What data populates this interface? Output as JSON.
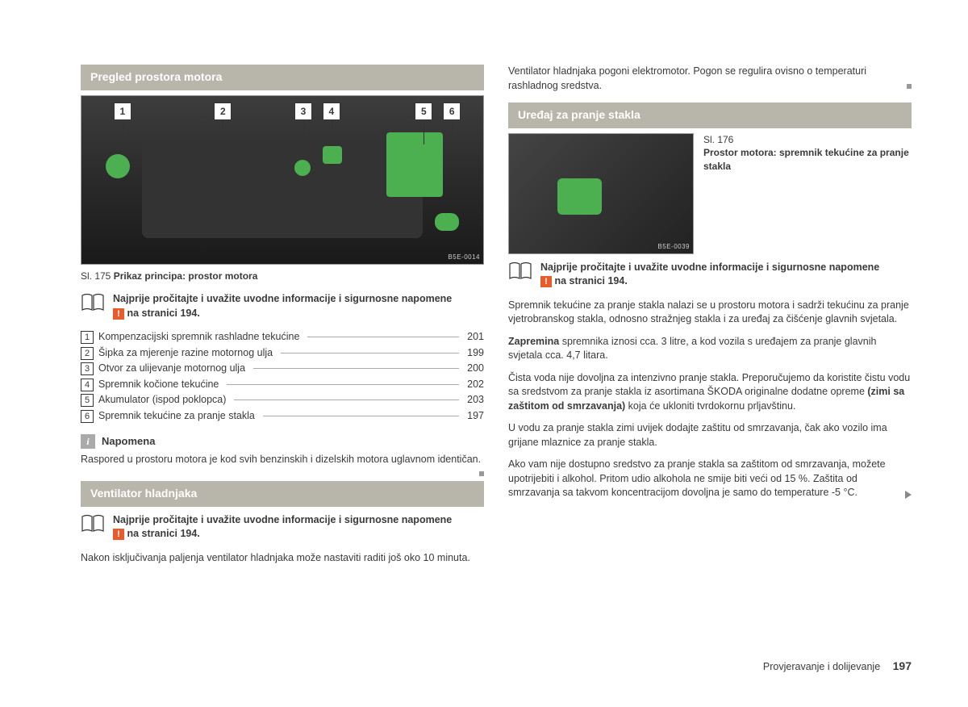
{
  "left": {
    "section1_title": "Pregled prostora motora",
    "engine_image": {
      "code": "B5E-0014",
      "markers": [
        {
          "num": "1",
          "left_pct": 8
        },
        {
          "num": "2",
          "left_pct": 33
        },
        {
          "num": "3",
          "left_pct": 53
        },
        {
          "num": "4",
          "left_pct": 60
        },
        {
          "num": "5",
          "left_pct": 83
        },
        {
          "num": "6",
          "left_pct": 90
        }
      ]
    },
    "fig175_num": "Sl. 175",
    "fig175_title": "Prikaz principa: prostor motora",
    "notice_text": "Najprije pročitajte i uvažite uvodne informacije i sigurnosne napomene",
    "notice_page": "na stranici 194.",
    "refs": [
      {
        "num": "1",
        "label": "Kompenzacijski spremnik rashladne tekućine",
        "page": "201"
      },
      {
        "num": "2",
        "label": "Šipka za mjerenje razine motornog ulja",
        "page": "199"
      },
      {
        "num": "3",
        "label": "Otvor za ulijevanje motornog ulja",
        "page": "200"
      },
      {
        "num": "4",
        "label": "Spremnik kočione tekućine",
        "page": "202"
      },
      {
        "num": "5",
        "label": "Akumulator (ispod poklopca)",
        "page": "203"
      },
      {
        "num": "6",
        "label": "Spremnik tekućine za pranje stakla",
        "page": "197"
      }
    ],
    "note_title": "Napomena",
    "note_body": "Raspored u prostoru motora je kod svih benzinskih i dizelskih motora uglavnom identičan.",
    "section2_title": "Ventilator hladnjaka",
    "fan_para": "Nakon isključivanja paljenja ventilator hladnjaka može nastaviti raditi još oko 10 minuta."
  },
  "right": {
    "top_para": "Ventilator hladnjaka pogoni elektromotor. Pogon se regulira ovisno o temperaturi rashladnog sredstva.",
    "section_title": "Uređaj za pranje stakla",
    "washer_image": {
      "code": "B5E-0039"
    },
    "fig176_num": "Sl. 176",
    "fig176_title": "Prostor motora: spremnik tekućine za pranje stakla",
    "notice_text": "Najprije pročitajte i uvažite uvodne informacije i sigurnosne napomene",
    "notice_page": "na stranici 194.",
    "p1": "Spremnik tekućine za pranje stakla nalazi se u prostoru motora i sadrži tekućinu za pranje vjetrobranskog stakla, odnosno stražnjeg stakla i za uređaj za čišćenje glavnih svjetala.",
    "p2a": "Zapremina",
    "p2b": " spremnika iznosi cca. 3 litre, a kod vozila s uređajem za pranje glavnih svjetala cca. 4,7 litara.",
    "p3a": "Čista voda nije dovoljna za intenzivno pranje stakla. Preporučujemo da koristite čistu vodu sa sredstvom za pranje stakla iz asortimana ŠKODA originalne dodatne opreme ",
    "p3b": "(zimi sa zaštitom od smrzavanja)",
    "p3c": " koja će ukloniti tvrdokornu prljavštinu.",
    "p4": "U vodu za pranje stakla zimi uvijek dodajte zaštitu od smrzavanja, čak ako vozilo ima grijane mlaznice za pranje stakla.",
    "p5": "Ako vam nije dostupno sredstvo za pranje stakla sa zaštitom od smrzavanja, možete upotrijebiti i alkohol. Pritom udio alkohola ne smije biti veći od 15 %. Zaštita od smrzavanja sa takvom koncentracijom dovoljna je samo do temperature -5 °C."
  },
  "footer": {
    "section": "Provjeravanje i dolijevanje",
    "page": "197"
  }
}
